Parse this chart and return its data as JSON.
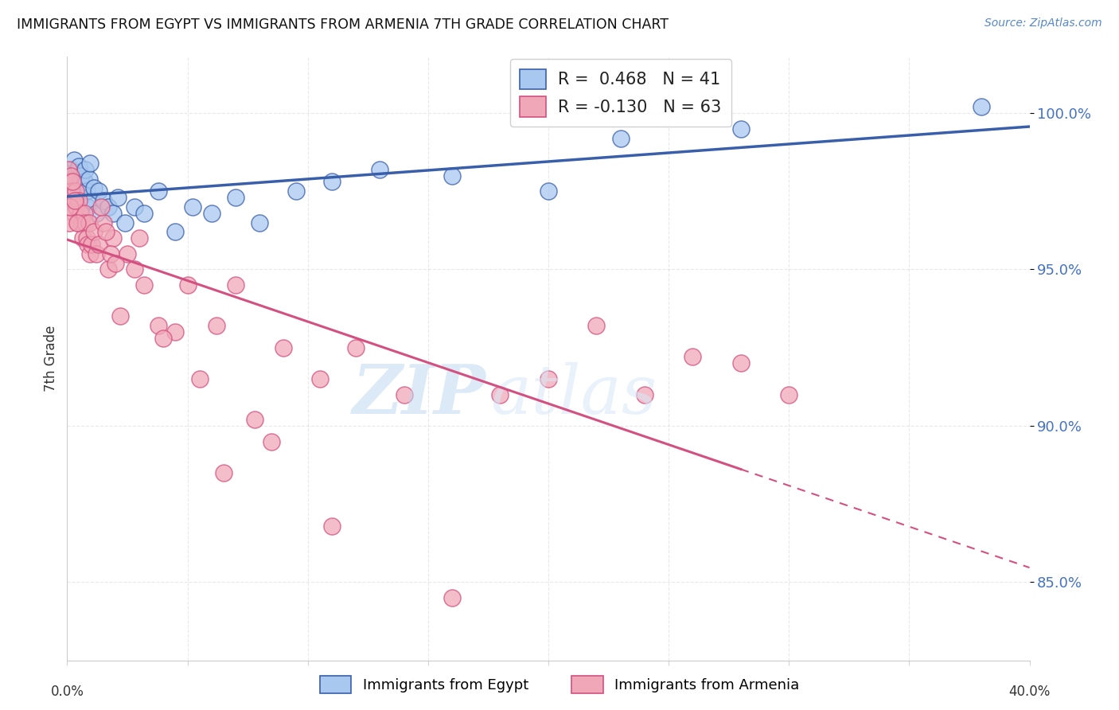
{
  "title": "IMMIGRANTS FROM EGYPT VS IMMIGRANTS FROM ARMENIA 7TH GRADE CORRELATION CHART",
  "source": "Source: ZipAtlas.com",
  "ylabel": "7th Grade",
  "x_min": 0.0,
  "x_max": 40.0,
  "y_min": 82.5,
  "y_max": 101.8,
  "y_ticks": [
    85.0,
    90.0,
    95.0,
    100.0
  ],
  "legend_egypt": "Immigrants from Egypt",
  "legend_armenia": "Immigrants from Armenia",
  "r_egypt": "0.468",
  "n_egypt": 41,
  "r_armenia": "-0.130",
  "n_armenia": 63,
  "color_egypt": "#a8c8f0",
  "color_armenia": "#f0a8b8",
  "trendline_egypt": "#3a5faa",
  "trendline_armenia": "#d45080",
  "watermark_zip": "ZIP",
  "watermark_atlas": "atlas",
  "egypt_x": [
    0.15,
    0.2,
    0.25,
    0.3,
    0.4,
    0.45,
    0.5,
    0.55,
    0.6,
    0.65,
    0.7,
    0.75,
    0.8,
    0.85,
    0.9,
    0.95,
    1.0,
    1.1,
    1.2,
    1.3,
    1.5,
    1.7,
    1.9,
    2.1,
    2.4,
    2.8,
    3.2,
    3.8,
    4.5,
    5.2,
    6.0,
    7.0,
    8.0,
    9.5,
    11.0,
    13.0,
    16.0,
    20.0,
    23.0,
    28.0,
    38.0
  ],
  "egypt_y": [
    97.5,
    98.2,
    97.8,
    98.5,
    98.1,
    97.6,
    98.3,
    97.9,
    98.0,
    97.4,
    97.8,
    98.2,
    97.5,
    97.0,
    97.9,
    98.4,
    97.2,
    97.6,
    96.8,
    97.5,
    97.2,
    97.0,
    96.8,
    97.3,
    96.5,
    97.0,
    96.8,
    97.5,
    96.2,
    97.0,
    96.8,
    97.3,
    96.5,
    97.5,
    97.8,
    98.2,
    98.0,
    97.5,
    99.2,
    99.5,
    100.2
  ],
  "armenia_x": [
    0.05,
    0.1,
    0.15,
    0.2,
    0.25,
    0.3,
    0.35,
    0.4,
    0.45,
    0.5,
    0.55,
    0.6,
    0.65,
    0.7,
    0.75,
    0.8,
    0.85,
    0.9,
    0.95,
    1.0,
    1.1,
    1.2,
    1.3,
    1.5,
    1.7,
    1.9,
    2.2,
    2.5,
    2.8,
    3.2,
    3.8,
    4.5,
    5.0,
    5.5,
    6.2,
    7.0,
    7.8,
    9.0,
    10.5,
    12.0,
    14.0,
    16.0,
    18.0,
    20.0,
    22.0,
    24.0,
    26.0,
    28.0,
    30.0,
    0.08,
    0.12,
    0.22,
    0.32,
    0.42,
    1.4,
    1.6,
    1.8,
    2.0,
    3.0,
    4.0,
    6.5,
    8.5,
    11.0
  ],
  "armenia_y": [
    98.2,
    97.8,
    98.0,
    97.5,
    97.2,
    96.8,
    97.5,
    97.0,
    96.5,
    97.2,
    96.8,
    96.5,
    96.0,
    96.8,
    96.5,
    96.0,
    95.8,
    96.5,
    95.5,
    95.8,
    96.2,
    95.5,
    95.8,
    96.5,
    95.0,
    96.0,
    93.5,
    95.5,
    95.0,
    94.5,
    93.2,
    93.0,
    94.5,
    91.5,
    93.2,
    94.5,
    90.2,
    92.5,
    91.5,
    92.5,
    91.0,
    84.5,
    91.0,
    91.5,
    93.2,
    91.0,
    92.2,
    92.0,
    91.0,
    96.5,
    97.0,
    97.8,
    97.2,
    96.5,
    97.0,
    96.2,
    95.5,
    95.2,
    96.0,
    92.8,
    88.5,
    89.5,
    86.8
  ],
  "armenia_solid_end_x": 28.0
}
